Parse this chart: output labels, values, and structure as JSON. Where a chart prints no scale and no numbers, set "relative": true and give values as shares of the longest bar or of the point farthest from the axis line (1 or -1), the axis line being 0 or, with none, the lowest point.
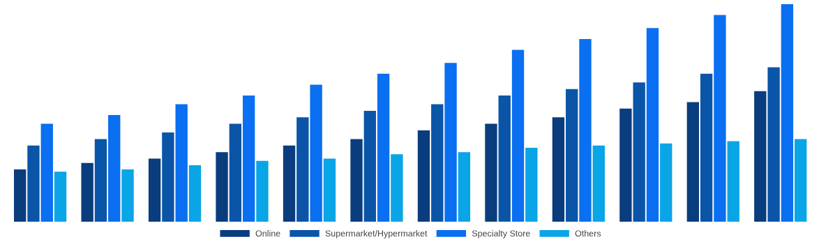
{
  "chart_data": {
    "type": "bar",
    "relative": true,
    "categories": [
      null,
      null,
      null,
      null,
      null,
      null,
      null,
      null,
      null,
      null,
      null,
      null
    ],
    "series": [
      {
        "name": "Online",
        "color": "#0a3d7e",
        "values": [
          0.24,
          0.27,
          0.29,
          0.32,
          0.35,
          0.38,
          0.42,
          0.45,
          0.48,
          0.52,
          0.55,
          0.6
        ]
      },
      {
        "name": "Supermarket/Hypermarket",
        "color": "#0b55a8",
        "values": [
          0.35,
          0.38,
          0.41,
          0.45,
          0.48,
          0.51,
          0.54,
          0.58,
          0.61,
          0.64,
          0.68,
          0.71
        ]
      },
      {
        "name": "Specialty Store",
        "color": "#0a6ff0",
        "values": [
          0.45,
          0.49,
          0.54,
          0.58,
          0.63,
          0.68,
          0.73,
          0.79,
          0.84,
          0.89,
          0.95,
          1
        ]
      },
      {
        "name": "Others",
        "color": "#0aa5e6",
        "values": [
          0.23,
          0.24,
          0.26,
          0.28,
          0.29,
          0.31,
          0.32,
          0.34,
          0.35,
          0.36,
          0.37,
          0.38
        ]
      }
    ],
    "legend": "bottom",
    "grid": false
  }
}
